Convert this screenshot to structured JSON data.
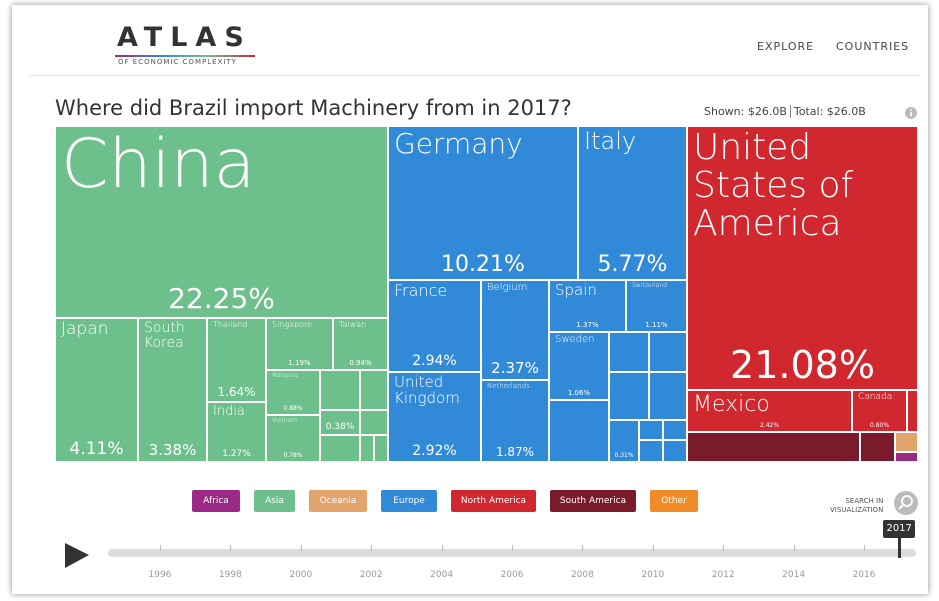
{
  "header": {
    "logo": "ATLAS",
    "logo_subtitle": "OF ECONOMIC COMPLEXITY",
    "nav": [
      "EXPLORE",
      "COUNTRIES"
    ]
  },
  "chart_data": {
    "type": "treemap",
    "title": "Where did Brazil import Machinery from in 2017?",
    "shown": "Shown: $26.0B",
    "total": "Total: $26.0B",
    "categories": [
      "China",
      "Japan",
      "South Korea",
      "Thailand",
      "India",
      "Singapore",
      "Taiwan",
      "Malaysia",
      "Vietnam",
      null,
      "Germany",
      "Italy",
      "France",
      "United Kingdom",
      "Belgium",
      "Netherlands",
      "Spain",
      "Switzerland",
      "Sweden",
      null,
      "United States of America",
      "Mexico",
      "Canada"
    ],
    "values": [
      22.25,
      4.11,
      3.38,
      1.64,
      1.27,
      1.19,
      0.94,
      0.88,
      0.78,
      0.38,
      10.21,
      5.77,
      2.94,
      2.92,
      2.37,
      1.87,
      1.37,
      1.11,
      1.06,
      0.31,
      21.08,
      2.42,
      0.8
    ],
    "value_labels": [
      "22.25%",
      "4.11%",
      "3.38%",
      "1.64%",
      "1.27%",
      "1.19%",
      "0.94%",
      "0.88%",
      "0.78%",
      "0.38%",
      "10.21%",
      "5.77%",
      "2.94%",
      "2.92%",
      "2.37%",
      "1.87%",
      "1.37%",
      "1.11%",
      "1.06%",
      "0.31%",
      "21.08%",
      "2.42%",
      "0.80%"
    ],
    "colors": [
      "#6dc08c",
      "#6dc08c",
      "#6dc08c",
      "#6dc08c",
      "#6dc08c",
      "#6dc08c",
      "#6dc08c",
      "#6dc08c",
      "#6dc08c",
      "#6dc08c",
      "#318ad8",
      "#318ad8",
      "#318ad8",
      "#318ad8",
      "#318ad8",
      "#318ad8",
      "#318ad8",
      "#318ad8",
      "#318ad8",
      "#318ad8",
      "#d0282e",
      "#d0282e",
      "#d0282e"
    ],
    "legend": [
      {
        "name": "Africa",
        "color": "#9b2a86"
      },
      {
        "name": "Asia",
        "color": "#6dc08c"
      },
      {
        "name": "Oceania",
        "color": "#e1a46c"
      },
      {
        "name": "Europe",
        "color": "#318ad8"
      },
      {
        "name": "North America",
        "color": "#d0282e"
      },
      {
        "name": "South America",
        "color": "#7a1b2b"
      },
      {
        "name": "Other",
        "color": "#f08b25"
      }
    ]
  },
  "search": [
    "SEARCH IN",
    "VISUALIZATION"
  ],
  "timeline": {
    "selected": 2017,
    "ticks": [
      1996,
      1998,
      2000,
      2002,
      2004,
      2006,
      2008,
      2010,
      2012,
      2014,
      2016
    ]
  }
}
